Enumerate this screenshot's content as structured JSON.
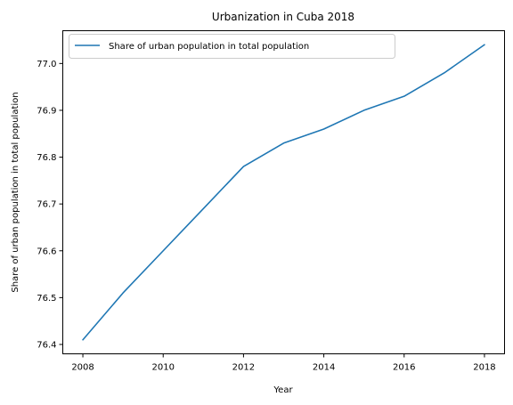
{
  "chart_data": {
    "type": "line",
    "title": "Urbanization in Cuba 2018",
    "xlabel": "Year",
    "ylabel": "Share of urban population in total population",
    "xlim": [
      2007.5,
      2018.5
    ],
    "ylim": [
      76.38,
      77.07
    ],
    "xticks": [
      2008,
      2010,
      2012,
      2014,
      2016,
      2018
    ],
    "yticks": [
      76.4,
      76.5,
      76.6,
      76.7,
      76.8,
      76.9,
      77.0
    ],
    "ytick_labels": [
      "76.4",
      "76.5",
      "76.6",
      "76.7",
      "76.8",
      "76.9",
      "77.0"
    ],
    "grid": false,
    "legend_position": "upper left",
    "series": [
      {
        "name": "Share of urban population in total population",
        "color": "#1f77b4",
        "x": [
          2008,
          2009,
          2010,
          2011,
          2012,
          2013,
          2014,
          2015,
          2016,
          2017,
          2018
        ],
        "y": [
          76.41,
          76.51,
          76.6,
          76.69,
          76.78,
          76.83,
          76.86,
          76.9,
          76.93,
          76.98,
          77.04
        ]
      }
    ]
  }
}
